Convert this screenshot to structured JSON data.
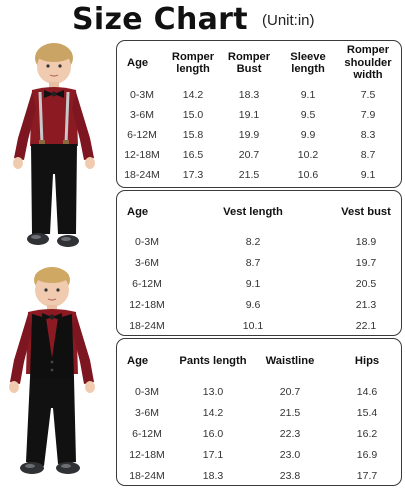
{
  "header": {
    "title": "Size Chart",
    "unit": "(Unit:in)"
  },
  "tables": {
    "romper": {
      "headers": [
        "Age",
        "Romper length",
        "Romper Bust",
        "Sleeve length",
        "Romper shoulder width"
      ],
      "rows": [
        [
          "0-3M",
          "14.2",
          "18.3",
          "9.1",
          "7.5"
        ],
        [
          "3-6M",
          "15.0",
          "19.1",
          "9.5",
          "7.9"
        ],
        [
          "6-12M",
          "15.8",
          "19.9",
          "9.9",
          "8.3"
        ],
        [
          "12-18M",
          "16.5",
          "20.7",
          "10.2",
          "8.7"
        ],
        [
          "18-24M",
          "17.3",
          "21.5",
          "10.6",
          "9.1"
        ]
      ]
    },
    "vest": {
      "headers": [
        "Age",
        "Vest length",
        "Vest bust"
      ],
      "rows": [
        [
          "0-3M",
          "8.2",
          "18.9"
        ],
        [
          "3-6M",
          "8.7",
          "19.7"
        ],
        [
          "6-12M",
          "9.1",
          "20.5"
        ],
        [
          "12-18M",
          "9.6",
          "21.3"
        ],
        [
          "18-24M",
          "10.1",
          "22.1"
        ]
      ]
    },
    "pants": {
      "headers": [
        "Age",
        "Pants length",
        "Waistline",
        "Hips"
      ],
      "rows": [
        [
          "0-3M",
          "13.0",
          "20.7",
          "14.6"
        ],
        [
          "3-6M",
          "14.2",
          "21.5",
          "15.4"
        ],
        [
          "6-12M",
          "16.0",
          "22.3",
          "16.2"
        ],
        [
          "12-18M",
          "17.1",
          "23.0",
          "16.9"
        ],
        [
          "18-24M",
          "18.3",
          "23.8",
          "17.7"
        ]
      ]
    }
  },
  "colors": {
    "shirt": "#8b1a22",
    "pants": "#111111",
    "border": "#3a3a3a"
  },
  "images": [
    "toddler-romper-suspenders-photo",
    "toddler-vest-suit-photo"
  ]
}
